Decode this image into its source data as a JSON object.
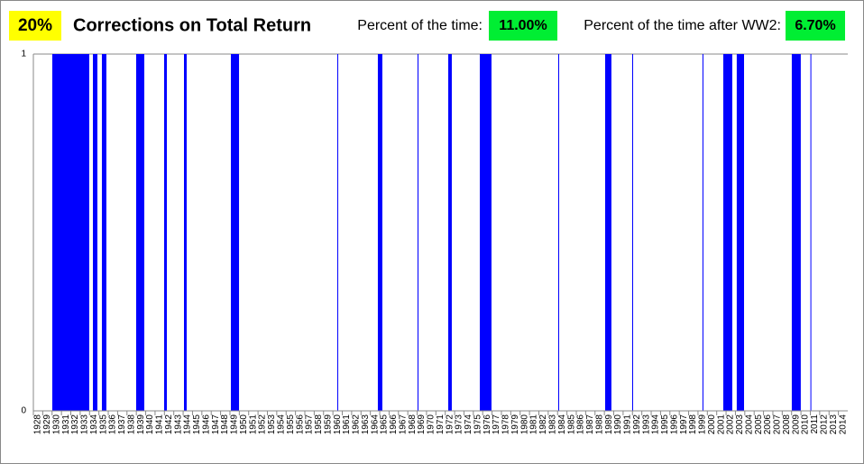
{
  "chart_data": {
    "type": "span",
    "badge": "20%",
    "title": "Corrections on Total Return",
    "stats": [
      {
        "label": "Percent of the time:",
        "value": "11.00%"
      },
      {
        "label": "Percent of the time after WW2:",
        "value": "6.70%"
      }
    ],
    "x_start": [
      1930.02,
      1934.36,
      1935.32,
      1938.98,
      1941.97,
      1944.09,
      1949.1,
      1960.47,
      1964.8,
      1969.04,
      1972.32,
      1975.69,
      1984.07,
      1989.08,
      1991.97,
      1999.48,
      2001.7,
      2003.14,
      2009.02,
      2011.01
    ],
    "x_end": [
      1933.97,
      1934.84,
      1935.8,
      1939.85,
      1942.26,
      1944.38,
      1949.97,
      1960.56,
      1965.28,
      1969.14,
      1972.7,
      1976.94,
      1984.17,
      1989.75,
      1992.07,
      1999.58,
      2002.66,
      2003.92,
      2009.98,
      2011.1
    ],
    "values": [
      1,
      1,
      1,
      1,
      1,
      1,
      1,
      1,
      1,
      1,
      1,
      1,
      1,
      1,
      1,
      1,
      1,
      1,
      1,
      1
    ],
    "color": "#0000ff",
    "xlim": [
      1928,
      2015
    ],
    "xticks": [
      1928,
      1929,
      1930,
      1931,
      1932,
      1933,
      1934,
      1935,
      1936,
      1937,
      1938,
      1939,
      1940,
      1941,
      1942,
      1943,
      1944,
      1945,
      1946,
      1947,
      1948,
      1949,
      1950,
      1951,
      1952,
      1953,
      1954,
      1955,
      1956,
      1957,
      1958,
      1959,
      1960,
      1961,
      1962,
      1963,
      1964,
      1965,
      1966,
      1967,
      1968,
      1969,
      1970,
      1971,
      1972,
      1973,
      1974,
      1975,
      1976,
      1977,
      1978,
      1979,
      1980,
      1981,
      1982,
      1983,
      1984,
      1985,
      1986,
      1987,
      1988,
      1989,
      1990,
      1991,
      1992,
      1993,
      1994,
      1995,
      1996,
      1997,
      1998,
      1999,
      2000,
      2001,
      2002,
      2003,
      2004,
      2005,
      2006,
      2007,
      2008,
      2009,
      2010,
      2011,
      2012,
      2013,
      2014
    ],
    "ylim": [
      0,
      1
    ],
    "yticks": [
      0,
      1
    ],
    "grid": true
  }
}
